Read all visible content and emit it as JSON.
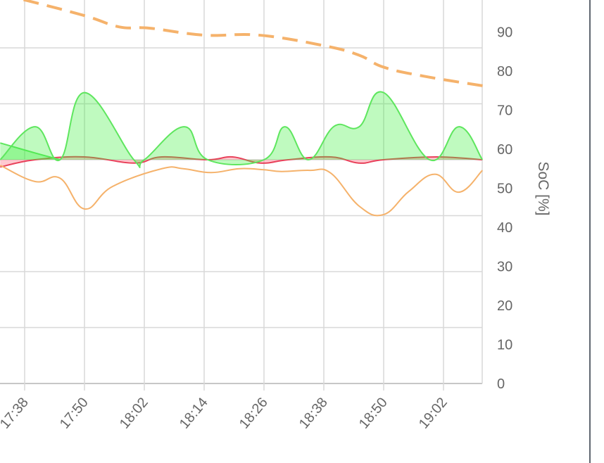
{
  "chart_data": {
    "type": "line",
    "x_unit": "minutes after 17:38",
    "x_tick_labels": [
      "17:38",
      "17:50",
      "18:02",
      "18:14",
      "18:26",
      "18:38",
      "18:50",
      "19:02"
    ],
    "x_tick_minutes": [
      0,
      12,
      24,
      36,
      48,
      60,
      72,
      84
    ],
    "xlim": [
      -4.9,
      91.8
    ],
    "right_axis": {
      "label": "SoC [%]",
      "ticks": [
        "0",
        "10",
        "20",
        "30",
        "40",
        "50",
        "60",
        "70",
        "80",
        "90"
      ],
      "ylim": [
        0,
        98
      ]
    },
    "left_axis_units_per_grid": 1,
    "grid": true,
    "colors": {
      "green": "#5ee65e",
      "green_fill": "rgba(60,240,60,0.33)",
      "red": "#e8415a",
      "red_fill": "rgba(255,100,120,0.35)",
      "orange": "#f5b26b",
      "soc": "#f5b26b"
    },
    "series": [
      {
        "name": "green-a",
        "axis": "left",
        "area": true,
        "x": [
          -4.9,
          2.1,
          7.1,
          12,
          21.9,
          24,
          32,
          36.7,
          48,
          52.2,
          56.9,
          62.1,
          67.1,
          72,
          81.2,
          87.1,
          91.8
        ],
        "y": [
          0,
          0.59,
          0,
          1.2,
          0,
          0,
          0.59,
          0,
          0,
          0.59,
          0,
          0.6,
          0.59,
          1.2,
          0,
          0.59,
          0
        ]
      },
      {
        "name": "green-b",
        "axis": "left",
        "area": true,
        "x": [
          -4.9,
          2.1,
          7.1
        ],
        "y": [
          0.3,
          0.12,
          0
        ]
      },
      {
        "name": "red",
        "axis": "left",
        "area": true,
        "x": [
          -4.9,
          2.1,
          12,
          21.9,
          27.5,
          36.7,
          41.7,
          47.3,
          52.9,
          61.4,
          67.1,
          72,
          82.6,
          91.8
        ],
        "y": [
          -0.13,
          0,
          0.05,
          -0.06,
          0.05,
          0,
          0.05,
          -0.06,
          0,
          0.05,
          -0.06,
          0,
          0.05,
          0
        ]
      },
      {
        "name": "orange",
        "axis": "left",
        "area": false,
        "x": [
          -4.9,
          2.1,
          7.1,
          12,
          17.6,
          27.5,
          31.8,
          37.4,
          43.1,
          48,
          51.5,
          57.2,
          61.4,
          67.1,
          72,
          77,
          82.3,
          87.1,
          91.8
        ],
        "y": [
          -0.1,
          -0.39,
          -0.33,
          -0.88,
          -0.48,
          -0.16,
          -0.16,
          -0.23,
          -0.16,
          -0.18,
          -0.21,
          -0.19,
          -0.24,
          -0.83,
          -0.98,
          -0.57,
          -0.26,
          -0.58,
          -0.19
        ]
      },
      {
        "name": "SoC",
        "axis": "right",
        "dashed": true,
        "x": [
          -4.9,
          0,
          12,
          19,
          25,
          36,
          47,
          60,
          67,
          72,
          80,
          92
        ],
        "y": [
          99.5,
          98.2,
          94.2,
          91.3,
          91,
          89.2,
          89.2,
          86.5,
          84.1,
          81,
          78.7,
          76.2
        ]
      }
    ]
  }
}
